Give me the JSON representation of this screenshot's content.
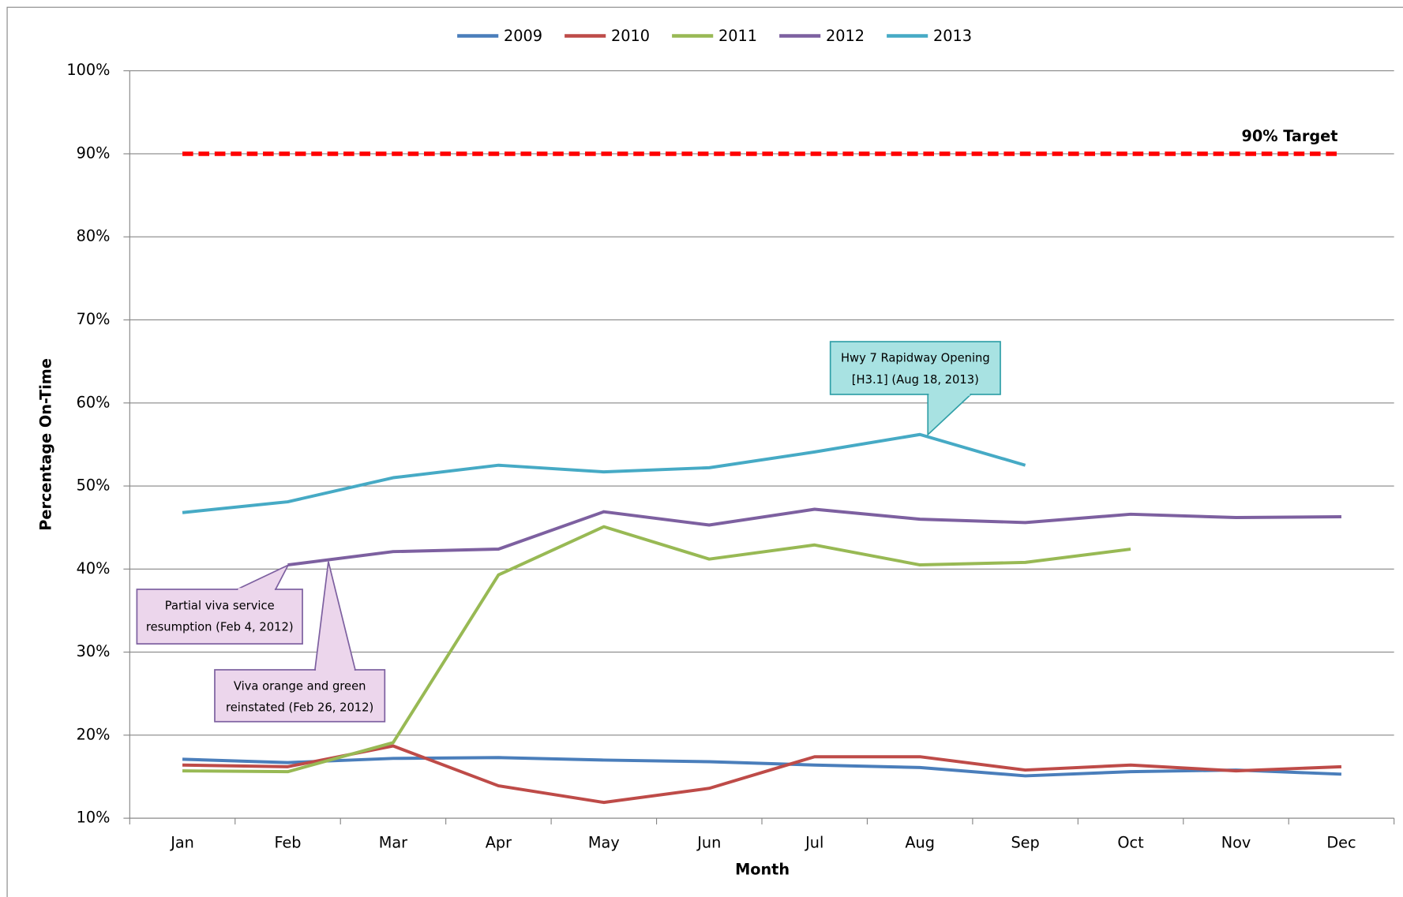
{
  "chart_data": {
    "type": "line",
    "y_label": "Percentage On-Time",
    "x_label": "Month",
    "categories": [
      "Jan",
      "Feb",
      "Mar",
      "Apr",
      "May",
      "Jun",
      "Jul",
      "Aug",
      "Sep",
      "Oct",
      "Nov",
      "Dec"
    ],
    "series": [
      {
        "name": "2009",
        "color": "#4a7ebb",
        "values": [
          17.1,
          16.7,
          17.2,
          17.3,
          17.0,
          16.8,
          16.4,
          16.1,
          15.1,
          15.6,
          15.8,
          15.3
        ]
      },
      {
        "name": "2010",
        "color": "#be4b48",
        "values": [
          16.4,
          16.2,
          18.7,
          13.9,
          11.9,
          13.6,
          17.4,
          17.4,
          15.8,
          16.4,
          15.7,
          16.2
        ]
      },
      {
        "name": "2011",
        "color": "#98b954",
        "values": [
          15.7,
          15.6,
          19.1,
          39.3,
          45.1,
          41.2,
          42.9,
          40.5,
          40.8,
          42.4,
          null,
          null
        ]
      },
      {
        "name": "2012",
        "color": "#7d60a0",
        "values": [
          null,
          40.5,
          42.1,
          42.4,
          46.9,
          45.3,
          47.2,
          46.0,
          45.6,
          46.6,
          46.2,
          46.3
        ]
      },
      {
        "name": "2013",
        "color": "#46aac5",
        "values": [
          46.8,
          48.1,
          51.0,
          52.5,
          51.7,
          52.2,
          54.1,
          56.2,
          52.5,
          null,
          null,
          null
        ]
      }
    ],
    "target": {
      "value": 90,
      "label": "90% Target",
      "color": "#ff0000"
    },
    "annotations": [
      {
        "lines": [
          "Partial viva service",
          "resumption (Feb 4, 2012)"
        ]
      },
      {
        "lines": [
          "Viva orange and green",
          "reinstated (Feb 26, 2012)"
        ]
      },
      {
        "lines": [
          "Hwy 7 Rapidway Opening",
          "[H3.1] (Aug 18, 2013)"
        ]
      }
    ],
    "ylim": [
      10,
      100
    ],
    "yticks": [
      {
        "value": 10,
        "label": "10%"
      },
      {
        "value": 20,
        "label": "20%"
      },
      {
        "value": 30,
        "label": "30%"
      },
      {
        "value": 40,
        "label": "40%"
      },
      {
        "value": 50,
        "label": "50%"
      },
      {
        "value": 60,
        "label": "60%"
      },
      {
        "value": 70,
        "label": "70%"
      },
      {
        "value": 80,
        "label": "80%"
      },
      {
        "value": 90,
        "label": "90%"
      },
      {
        "value": 100,
        "label": "100%"
      }
    ],
    "grid": true,
    "legend": "top"
  }
}
